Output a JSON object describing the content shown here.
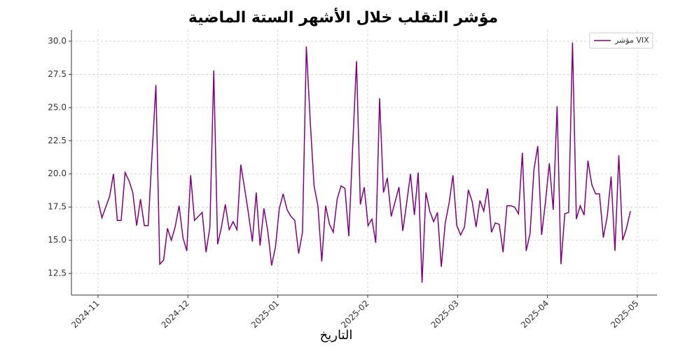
{
  "chart_data": {
    "type": "line",
    "title": "مؤشر التقلب خلال الأشهر الستة الماضية",
    "x_label": "التاريخ",
    "series": [
      {
        "name": "مؤشر VIX",
        "color": "#800080",
        "values": [
          18.0,
          16.7,
          17.5,
          18.3,
          20.0,
          16.5,
          16.5,
          20.1,
          19.5,
          18.6,
          16.1,
          18.1,
          16.1,
          16.1,
          21.5,
          26.7,
          13.2,
          13.5,
          15.9,
          15.0,
          16.0,
          17.6,
          15.2,
          14.2,
          19.9,
          16.5,
          16.8,
          17.1,
          14.1,
          16.0,
          27.8,
          14.7,
          16.0,
          17.7,
          15.8,
          16.4,
          15.8,
          20.7,
          18.9,
          17.0,
          14.9,
          18.6,
          14.6,
          17.4,
          15.7,
          13.1,
          14.5,
          17.4,
          18.5,
          17.3,
          16.8,
          16.5,
          14.0,
          15.6,
          29.6,
          24.0,
          19.1,
          17.6,
          13.4,
          17.6,
          16.2,
          15.6,
          18.1,
          19.1,
          18.9,
          15.3,
          22.0,
          28.5,
          17.7,
          19.0,
          16.1,
          16.6,
          14.8,
          25.7,
          18.6,
          19.7,
          16.8,
          17.9,
          19.0,
          15.7,
          17.8,
          20.0,
          16.9,
          20.1,
          11.8,
          18.6,
          17.2,
          16.4,
          17.1,
          13.0,
          16.3,
          17.8,
          19.9,
          16.1,
          15.4,
          16.0,
          18.8,
          17.9,
          16.0,
          18.0,
          17.2,
          18.9,
          15.6,
          16.3,
          16.2,
          14.1,
          17.6,
          17.6,
          17.5,
          17.0,
          21.6,
          14.2,
          15.5,
          20.3,
          22.1,
          15.4,
          17.9,
          20.8,
          17.3,
          25.1,
          13.2,
          17.0,
          17.1,
          29.9,
          16.6,
          17.6,
          16.9,
          21.0,
          19.2,
          18.5,
          18.5,
          15.2,
          16.8,
          19.8,
          14.2,
          21.4,
          15.0,
          15.9,
          17.2
        ]
      }
    ],
    "xticks": [
      "2024-11",
      "2024-12",
      "2025-01",
      "2025-02",
      "2025-03",
      "2025-04",
      "2025-05"
    ],
    "ylim": [
      10.87,
      30.84
    ],
    "yticks": [
      12.5,
      {
        "value": 15,
        "label": "15.0"
      },
      17.5,
      {
        "value": 20,
        "label": "20.0"
      },
      22.5,
      {
        "value": 25,
        "label": "25.0"
      },
      27.5,
      {
        "value": 30,
        "label": "30.0"
      }
    ],
    "grid": true,
    "legend": "upper right"
  }
}
